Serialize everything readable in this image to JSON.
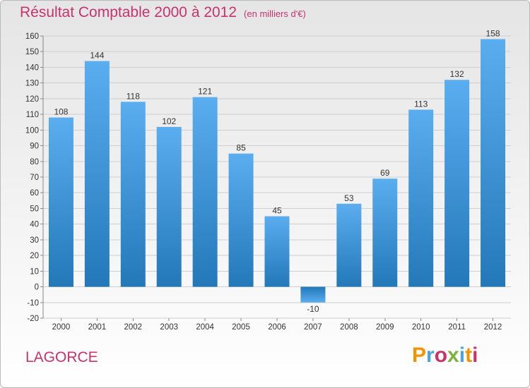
{
  "header": {
    "title": "Résultat Comptable 2000 à 2012",
    "unit": "(en milliers d'€)"
  },
  "footer": {
    "commune": "LAGORCE",
    "logo_text": "Proxiti",
    "logo_colors": [
      "#f29400",
      "#4aa3df",
      "#c8336a",
      "#7fb13d",
      "#4aa3df",
      "#f29400",
      "#c8336a"
    ]
  },
  "colors": {
    "bar_light": "#5aaef0",
    "bar_dark": "#2378b8",
    "grid": "#cfcfcf",
    "title": "#c8336a"
  },
  "chart_data": {
    "type": "bar",
    "categories": [
      "2000",
      "2001",
      "2002",
      "2003",
      "2004",
      "2005",
      "2006",
      "2007",
      "2008",
      "2009",
      "2010",
      "2011",
      "2012"
    ],
    "values": [
      108,
      144,
      118,
      102,
      121,
      85,
      45,
      -10,
      53,
      69,
      113,
      132,
      158
    ],
    "value_labels": [
      "108",
      "144",
      "118",
      "102",
      "121",
      "85",
      "45",
      "-10",
      "53",
      "69",
      "113",
      "132",
      "158"
    ],
    "ylim": [
      -20,
      160
    ],
    "yticks": [
      -20,
      -10,
      0,
      10,
      20,
      30,
      40,
      50,
      60,
      70,
      80,
      90,
      100,
      110,
      120,
      130,
      140,
      150,
      160
    ],
    "ytick_labels": [
      "-20",
      "-10",
      "0",
      "10",
      "20",
      "30",
      "40",
      "50",
      "60",
      "70",
      "80",
      "90",
      "100",
      "110",
      "120",
      "130",
      "140",
      "150",
      "160"
    ],
    "grid": true
  }
}
